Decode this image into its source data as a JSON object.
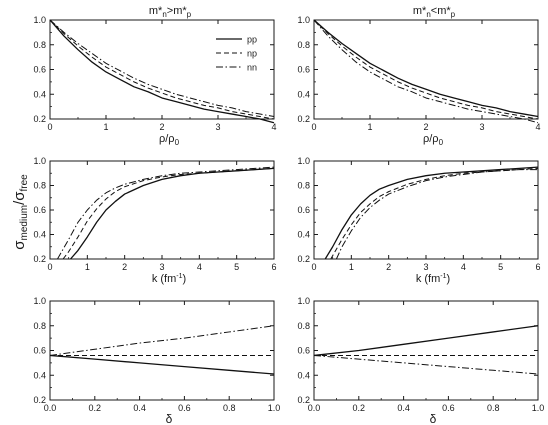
{
  "figure": {
    "ylabel_main": "σ",
    "ylabel_sub1": "medium",
    "ylabel_mid": "/σ",
    "ylabel_sub2": "free"
  },
  "chart_data": [
    {
      "type": "line",
      "title": "m*n>m*p",
      "title_parts": [
        "m*",
        "n",
        ">m*",
        "p"
      ],
      "xlabel": "ρ/ρ0",
      "xlabel_parts": [
        "ρ/ρ",
        "0"
      ],
      "xlim": [
        0,
        4
      ],
      "ylim": [
        0.2,
        1.0
      ],
      "xticks": [
        0,
        1,
        2,
        3,
        4
      ],
      "yticks": [
        0.2,
        0.4,
        0.6,
        0.8,
        1.0
      ],
      "xtick_labels": [
        "0",
        "1",
        "2",
        "3",
        "4"
      ],
      "ytick_labels": [
        "0.2",
        "0.4",
        "0.6",
        "0.8",
        "1.0"
      ],
      "legend": {
        "position": "top-right",
        "entries": [
          "pp",
          "np",
          "nn"
        ]
      },
      "series": [
        {
          "name": "pp",
          "style": "solid",
          "x": [
            0,
            0.25,
            0.5,
            0.75,
            1.0,
            1.25,
            1.5,
            1.75,
            2.0,
            2.25,
            2.5,
            2.75,
            3.0,
            3.25,
            3.5,
            3.75,
            4.0
          ],
          "y": [
            1.0,
            0.87,
            0.76,
            0.66,
            0.58,
            0.52,
            0.46,
            0.42,
            0.37,
            0.34,
            0.31,
            0.28,
            0.26,
            0.24,
            0.22,
            0.2,
            0.17
          ]
        },
        {
          "name": "np",
          "style": "dashed",
          "x": [
            0,
            0.25,
            0.5,
            0.75,
            1.0,
            1.25,
            1.5,
            1.75,
            2.0,
            2.25,
            2.5,
            2.75,
            3.0,
            3.25,
            3.5,
            3.75,
            4.0
          ],
          "y": [
            1.0,
            0.89,
            0.79,
            0.7,
            0.62,
            0.56,
            0.5,
            0.45,
            0.41,
            0.37,
            0.34,
            0.31,
            0.29,
            0.26,
            0.24,
            0.22,
            0.2
          ]
        },
        {
          "name": "nn",
          "style": "dashdot",
          "x": [
            0,
            0.25,
            0.5,
            0.75,
            1.0,
            1.25,
            1.5,
            1.75,
            2.0,
            2.25,
            2.5,
            2.75,
            3.0,
            3.25,
            3.5,
            3.75,
            4.0
          ],
          "y": [
            1.0,
            0.9,
            0.81,
            0.73,
            0.65,
            0.59,
            0.53,
            0.48,
            0.44,
            0.4,
            0.37,
            0.34,
            0.31,
            0.29,
            0.26,
            0.24,
            0.22
          ]
        }
      ]
    },
    {
      "type": "line",
      "title": "m*n<m*p",
      "title_parts": [
        "m*",
        "n",
        "<m*",
        "p"
      ],
      "xlabel": "ρ/ρ0",
      "xlabel_parts": [
        "ρ/ρ",
        "0"
      ],
      "xlim": [
        0,
        4
      ],
      "ylim": [
        0.2,
        1.0
      ],
      "xticks": [
        0,
        1,
        2,
        3,
        4
      ],
      "yticks": [
        0.2,
        0.4,
        0.6,
        0.8,
        1.0
      ],
      "xtick_labels": [
        "0",
        "1",
        "2",
        "3",
        "4"
      ],
      "ytick_labels": [
        "0.2",
        "0.4",
        "0.6",
        "0.8",
        "1.0"
      ],
      "series": [
        {
          "name": "pp",
          "style": "solid",
          "x": [
            0,
            0.25,
            0.5,
            0.75,
            1.0,
            1.25,
            1.5,
            1.75,
            2.0,
            2.25,
            2.5,
            2.75,
            3.0,
            3.25,
            3.5,
            3.75,
            4.0
          ],
          "y": [
            1.0,
            0.9,
            0.81,
            0.73,
            0.65,
            0.59,
            0.53,
            0.48,
            0.44,
            0.4,
            0.37,
            0.34,
            0.31,
            0.29,
            0.26,
            0.24,
            0.22
          ]
        },
        {
          "name": "np",
          "style": "dashed",
          "x": [
            0,
            0.25,
            0.5,
            0.75,
            1.0,
            1.25,
            1.5,
            1.75,
            2.0,
            2.25,
            2.5,
            2.75,
            3.0,
            3.25,
            3.5,
            3.75,
            4.0
          ],
          "y": [
            1.0,
            0.89,
            0.79,
            0.7,
            0.62,
            0.56,
            0.5,
            0.45,
            0.41,
            0.37,
            0.34,
            0.31,
            0.29,
            0.26,
            0.24,
            0.22,
            0.2
          ]
        },
        {
          "name": "nn",
          "style": "dashdot",
          "x": [
            0,
            0.25,
            0.5,
            0.75,
            1.0,
            1.25,
            1.5,
            1.75,
            2.0,
            2.25,
            2.5,
            2.75,
            3.0,
            3.25,
            3.5,
            3.75,
            4.0
          ],
          "y": [
            1.0,
            0.87,
            0.76,
            0.66,
            0.58,
            0.52,
            0.46,
            0.42,
            0.37,
            0.34,
            0.31,
            0.28,
            0.26,
            0.24,
            0.22,
            0.2,
            0.17
          ]
        }
      ]
    },
    {
      "type": "line",
      "title": "",
      "xlabel": "k (fm-1)",
      "xlabel_parts": [
        "k (fm",
        "-1",
        ")"
      ],
      "xlim": [
        0,
        6
      ],
      "ylim": [
        0.2,
        1.0
      ],
      "xticks": [
        0,
        1,
        2,
        3,
        4,
        5,
        6
      ],
      "yticks": [
        0.2,
        0.4,
        0.6,
        0.8,
        1.0
      ],
      "xtick_labels": [
        "0",
        "1",
        "2",
        "3",
        "4",
        "5",
        "6"
      ],
      "ytick_labels": [
        "0.2",
        "0.4",
        "0.6",
        "0.8",
        "1.0"
      ],
      "series": [
        {
          "name": "pp",
          "style": "solid",
          "x": [
            0.55,
            0.75,
            1.0,
            1.25,
            1.5,
            1.75,
            2.0,
            2.5,
            3.0,
            3.5,
            4.0,
            4.5,
            5.0,
            5.5,
            6.0
          ],
          "y": [
            0.2,
            0.27,
            0.38,
            0.5,
            0.6,
            0.67,
            0.73,
            0.8,
            0.85,
            0.88,
            0.9,
            0.91,
            0.92,
            0.93,
            0.94
          ]
        },
        {
          "name": "np",
          "style": "dashed",
          "x": [
            0.35,
            0.5,
            0.75,
            1.0,
            1.25,
            1.5,
            1.75,
            2.0,
            2.5,
            3.0,
            3.5,
            4.0,
            4.5,
            5.0,
            5.5,
            6.0
          ],
          "y": [
            0.2,
            0.26,
            0.38,
            0.51,
            0.61,
            0.69,
            0.75,
            0.79,
            0.84,
            0.87,
            0.89,
            0.9,
            0.91,
            0.92,
            0.93,
            0.94
          ]
        },
        {
          "name": "nn",
          "style": "dashdot",
          "x": [
            0.2,
            0.5,
            0.75,
            1.0,
            1.25,
            1.5,
            1.75,
            2.0,
            2.5,
            3.0,
            3.5,
            4.0,
            4.5,
            5.0,
            5.5,
            6.0
          ],
          "y": [
            0.2,
            0.36,
            0.5,
            0.6,
            0.68,
            0.74,
            0.78,
            0.81,
            0.85,
            0.88,
            0.9,
            0.91,
            0.92,
            0.93,
            0.94,
            0.95
          ]
        }
      ]
    },
    {
      "type": "line",
      "title": "",
      "xlabel": "k (fm-1)",
      "xlabel_parts": [
        "k (fm",
        "-1",
        ")"
      ],
      "xlim": [
        0,
        6
      ],
      "ylim": [
        0.2,
        1.0
      ],
      "xticks": [
        0,
        1,
        2,
        3,
        4,
        5,
        6
      ],
      "yticks": [
        0.2,
        0.4,
        0.6,
        0.8,
        1.0
      ],
      "xtick_labels": [
        "0",
        "1",
        "2",
        "3",
        "4",
        "5",
        "6"
      ],
      "ytick_labels": [
        "0.2",
        "0.4",
        "0.6",
        "0.8",
        "1.0"
      ],
      "series": [
        {
          "name": "pp",
          "style": "solid",
          "x": [
            0.3,
            0.5,
            0.75,
            1.0,
            1.25,
            1.5,
            1.75,
            2.0,
            2.5,
            3.0,
            3.5,
            4.0,
            4.5,
            5.0,
            5.5,
            6.0
          ],
          "y": [
            0.2,
            0.3,
            0.44,
            0.56,
            0.65,
            0.72,
            0.77,
            0.8,
            0.85,
            0.88,
            0.9,
            0.91,
            0.92,
            0.93,
            0.94,
            0.95
          ]
        },
        {
          "name": "np",
          "style": "dashed",
          "x": [
            0.45,
            0.75,
            1.0,
            1.25,
            1.5,
            1.75,
            2.0,
            2.5,
            3.0,
            3.5,
            4.0,
            4.5,
            5.0,
            5.5,
            6.0
          ],
          "y": [
            0.2,
            0.36,
            0.48,
            0.58,
            0.65,
            0.71,
            0.75,
            0.81,
            0.85,
            0.88,
            0.9,
            0.91,
            0.92,
            0.93,
            0.94
          ]
        },
        {
          "name": "nn",
          "style": "dashdot",
          "x": [
            0.6,
            0.75,
            1.0,
            1.25,
            1.5,
            1.75,
            2.0,
            2.5,
            3.0,
            3.5,
            4.0,
            4.5,
            5.0,
            5.5,
            6.0
          ],
          "y": [
            0.2,
            0.3,
            0.43,
            0.54,
            0.62,
            0.68,
            0.73,
            0.79,
            0.84,
            0.87,
            0.89,
            0.91,
            0.92,
            0.93,
            0.93
          ]
        }
      ]
    },
    {
      "type": "line",
      "title": "",
      "xlabel": "δ",
      "xlim": [
        0,
        1.0
      ],
      "ylim": [
        0.2,
        1.0
      ],
      "xticks": [
        0,
        0.2,
        0.4,
        0.6,
        0.8,
        1.0
      ],
      "yticks": [
        0.2,
        0.4,
        0.6,
        0.8,
        1.0
      ],
      "xtick_labels": [
        "0.0",
        "0.2",
        "0.4",
        "0.6",
        "0.8",
        "1.0"
      ],
      "ytick_labels": [
        "0.2",
        "0.4",
        "0.6",
        "0.8",
        "1.0"
      ],
      "series": [
        {
          "name": "pp",
          "style": "solid",
          "x": [
            0,
            0.2,
            0.4,
            0.6,
            0.8,
            1.0
          ],
          "y": [
            0.56,
            0.53,
            0.5,
            0.47,
            0.44,
            0.41
          ]
        },
        {
          "name": "np",
          "style": "dashed",
          "x": [
            0,
            0.2,
            0.4,
            0.6,
            0.8,
            1.0
          ],
          "y": [
            0.56,
            0.56,
            0.56,
            0.56,
            0.56,
            0.56
          ]
        },
        {
          "name": "nn",
          "style": "dashdot",
          "x": [
            0,
            0.2,
            0.4,
            0.6,
            0.8,
            1.0
          ],
          "y": [
            0.56,
            0.61,
            0.66,
            0.7,
            0.75,
            0.8
          ]
        }
      ]
    },
    {
      "type": "line",
      "title": "",
      "xlabel": "δ",
      "xlim": [
        0,
        1.0
      ],
      "ylim": [
        0.2,
        1.0
      ],
      "xticks": [
        0,
        0.2,
        0.4,
        0.6,
        0.8,
        1.0
      ],
      "yticks": [
        0.2,
        0.4,
        0.6,
        0.8,
        1.0
      ],
      "xtick_labels": [
        "0.0",
        "0.2",
        "0.4",
        "0.6",
        "0.8",
        "1.0"
      ],
      "ytick_labels": [
        "0.2",
        "0.4",
        "0.6",
        "0.8",
        "1.0"
      ],
      "series": [
        {
          "name": "pp",
          "style": "solid",
          "x": [
            0,
            0.2,
            0.4,
            0.6,
            0.8,
            1.0
          ],
          "y": [
            0.56,
            0.6,
            0.65,
            0.7,
            0.75,
            0.8
          ]
        },
        {
          "name": "np",
          "style": "dashed",
          "x": [
            0,
            0.2,
            0.4,
            0.6,
            0.8,
            1.0
          ],
          "y": [
            0.56,
            0.56,
            0.56,
            0.56,
            0.56,
            0.56
          ]
        },
        {
          "name": "nn",
          "style": "dashdot",
          "x": [
            0,
            0.2,
            0.4,
            0.6,
            0.8,
            1.0
          ],
          "y": [
            0.56,
            0.53,
            0.5,
            0.47,
            0.44,
            0.41
          ]
        }
      ]
    }
  ]
}
